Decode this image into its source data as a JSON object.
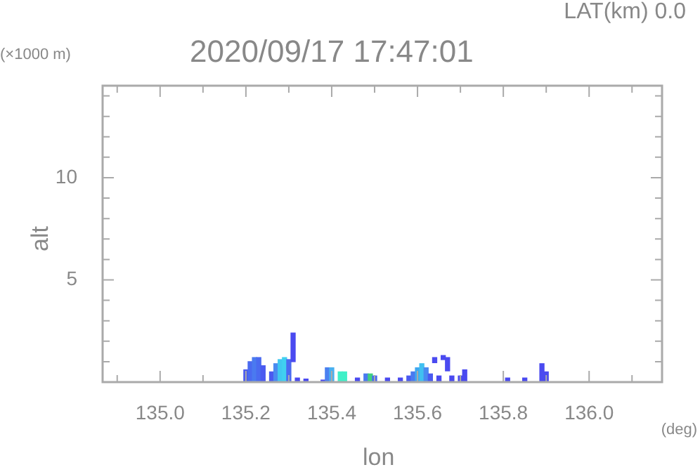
{
  "chart_data": {
    "type": "bar",
    "title": "2020/09/17 17:47:01",
    "subtitle": "LAT(km) 0.0",
    "xlabel": "lon",
    "ylabel": "alt",
    "annotations": [
      "(×1000 m)",
      "(deg)"
    ],
    "x": [
      135.2,
      135.21,
      135.22,
      135.23,
      135.24,
      135.26,
      135.27,
      135.28,
      135.29,
      135.3,
      135.31,
      135.32,
      135.34,
      135.38,
      135.39,
      135.4,
      135.42,
      135.43,
      135.46,
      135.48,
      135.49,
      135.5,
      135.53,
      135.56,
      135.58,
      135.59,
      135.6,
      135.61,
      135.62,
      135.63,
      135.64,
      135.65,
      135.66,
      135.67,
      135.68,
      135.7,
      135.71,
      135.81,
      135.85,
      135.89,
      135.9
    ],
    "values": [
      0.6,
      1.0,
      1.2,
      1.2,
      0.8,
      0.5,
      0.9,
      1.1,
      1.2,
      1.1,
      1.4,
      0.2,
      0.15,
      0.1,
      0.7,
      0.7,
      0.5,
      0.5,
      0.2,
      0.4,
      0.4,
      0.3,
      0.2,
      0.2,
      0.3,
      0.5,
      0.7,
      0.9,
      0.7,
      0.4,
      0.25,
      0.3,
      0.2,
      0.65,
      0.3,
      0.3,
      0.6,
      0.2,
      0.2,
      0.9,
      0.5
    ],
    "base": [
      0,
      0,
      0,
      0,
      0,
      0,
      0,
      0,
      0,
      0,
      1.0,
      0,
      0,
      0,
      0,
      0,
      0,
      0,
      0,
      0,
      0,
      0,
      0,
      0,
      0,
      0,
      0,
      0,
      0,
      0,
      0.95,
      0,
      1.1,
      0.55,
      0,
      0,
      0,
      0,
      0,
      0,
      0
    ],
    "colors": [
      "#4a5af0",
      "#4a6af0",
      "#4a7af0",
      "#4a6af0",
      "#4a5af0",
      "#4a5af0",
      "#4a8af0",
      "#40c8f0",
      "#40d0f0",
      "#4a6af0",
      "#4a4af0",
      "#4a4af0",
      "#4a4af0",
      "#4a4af0",
      "#4a80f0",
      "#4ab0f0",
      "#40f0c8",
      "#40f0c8",
      "#4a4af0",
      "#4a7af0",
      "#40d080",
      "#4a6af0",
      "#4a4af0",
      "#4a4af0",
      "#4a5af0",
      "#4a7af0",
      "#40a8f0",
      "#40c0f0",
      "#4a8af0",
      "#4a5af0",
      "#4a4af0",
      "#4a4af0",
      "#4a4af0",
      "#4a4af0",
      "#4a4af0",
      "#4a4af0",
      "#4a4af0",
      "#4a4af0",
      "#4a4af0",
      "#4a4af0",
      "#4a4af0"
    ],
    "xlim": [
      134.866,
      136.17
    ],
    "xticks": [
      {
        "value": 134.9,
        "label": null
      },
      {
        "value": 135,
        "label": "135.0"
      },
      {
        "value": 135.1,
        "label": null
      },
      {
        "value": 135.2,
        "label": "135.2"
      },
      {
        "value": 135.3,
        "label": null
      },
      {
        "value": 135.4,
        "label": "135.4"
      },
      {
        "value": 135.5,
        "label": null
      },
      {
        "value": 135.6,
        "label": "135.6"
      },
      {
        "value": 135.7,
        "label": null
      },
      {
        "value": 135.8,
        "label": "135.8"
      },
      {
        "value": 135.9,
        "label": null
      },
      {
        "value": 136,
        "label": "136.0"
      },
      {
        "value": 136.1,
        "label": null
      }
    ],
    "ylim": [
      0,
      14.5
    ],
    "yticks": [
      {
        "value": 1,
        "label": null
      },
      {
        "value": 2,
        "label": null
      },
      {
        "value": 3,
        "label": null
      },
      {
        "value": 4,
        "label": null
      },
      5,
      {
        "value": 6,
        "label": null
      },
      {
        "value": 7,
        "label": null
      },
      {
        "value": 8,
        "label": null
      },
      {
        "value": 9,
        "label": null
      },
      10,
      {
        "value": 11,
        "label": null
      },
      {
        "value": 12,
        "label": null
      },
      {
        "value": 13,
        "label": null
      },
      {
        "value": 14,
        "label": null
      }
    ]
  }
}
